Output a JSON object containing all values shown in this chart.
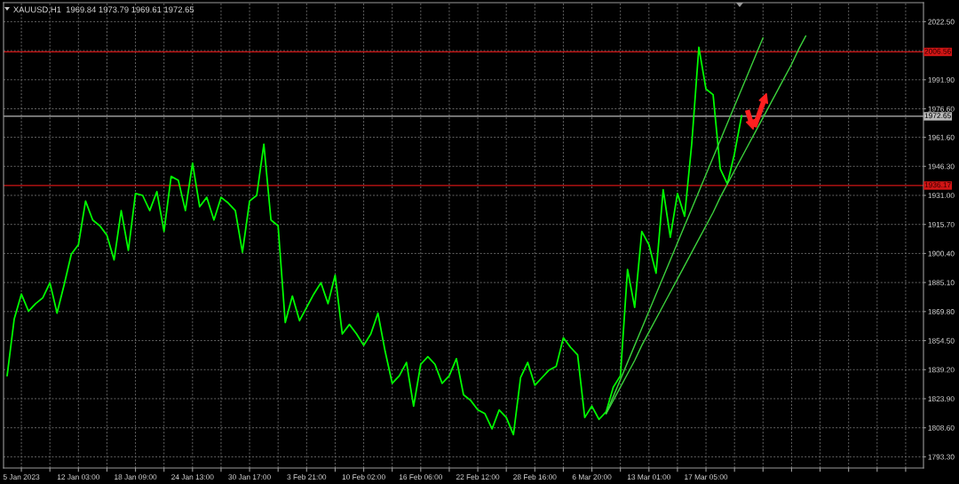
{
  "chart_data": {
    "type": "line",
    "title": "XAUUSD,H1  1969.84 1973.79 1969.61 1972.65",
    "categories": [
      null,
      null,
      "5 Jan 2023",
      null,
      null,
      null,
      null,
      null,
      null,
      null,
      "12 Jan 03:00",
      null,
      null,
      null,
      null,
      null,
      null,
      null,
      "18 Jan 09:00",
      null,
      null,
      null,
      null,
      null,
      null,
      null,
      "24 Jan 13:00",
      null,
      null,
      null,
      null,
      null,
      null,
      null,
      "30 Jan 17:00",
      null,
      null,
      null,
      null,
      null,
      null,
      null,
      "3 Feb 21:00",
      null,
      null,
      null,
      null,
      null,
      null,
      null,
      "10 Feb 02:00",
      null,
      null,
      null,
      null,
      null,
      null,
      null,
      "16 Feb 06:00",
      null,
      null,
      null,
      null,
      null,
      null,
      null,
      "22 Feb 12:00",
      null,
      null,
      null,
      null,
      null,
      null,
      null,
      "28 Feb 16:00",
      null,
      null,
      null,
      null,
      null,
      null,
      null,
      "6 Mar 20:00",
      null,
      null,
      null,
      null,
      null,
      null,
      null,
      "13 Mar 01:00",
      null,
      null,
      null,
      null,
      null,
      null,
      null,
      "17 Mar 05:00",
      null,
      null,
      null,
      null,
      null,
      null,
      null,
      null,
      null,
      null,
      null,
      null,
      null,
      null,
      null,
      null,
      null,
      null,
      null,
      null,
      null,
      null,
      null,
      null,
      null,
      null,
      null,
      null,
      null,
      null
    ],
    "series": [
      {
        "color": "#00ff00",
        "values": [
          1836,
          1866,
          1879,
          1870,
          1874,
          1877,
          1885,
          1869,
          1884,
          1900,
          1905,
          1928,
          1918,
          1915,
          1910,
          1897,
          1923,
          1902,
          1932,
          1931,
          1923,
          1933,
          1912,
          1941,
          1939,
          1923,
          1948,
          1925,
          1930,
          1918,
          1930,
          1927,
          1923,
          1901,
          1928,
          1931,
          1958,
          1918,
          1915,
          1864,
          1878,
          1865,
          1872,
          1879,
          1885,
          1874,
          1889,
          1858,
          1863,
          1858,
          1852,
          1858,
          1869,
          1849,
          1832,
          1836,
          1843,
          1820,
          1842,
          1846,
          1842,
          1832,
          1836,
          1845,
          1826,
          1823,
          1818,
          1816,
          1808,
          1818,
          1814,
          1805,
          1835,
          1843,
          1831,
          1835,
          1839,
          1841,
          1856,
          1851,
          1847,
          1814,
          1820,
          1813,
          1817,
          1830,
          1836,
          1892,
          1872,
          1912,
          1905,
          1890,
          1934,
          1909,
          1932,
          1920,
          1958,
          2009,
          1987,
          1984,
          1945,
          1937,
          1953,
          1973,
          null,
          null,
          null,
          null,
          null,
          null,
          null,
          null,
          null,
          null,
          null,
          null,
          null,
          null,
          null,
          null,
          null,
          null,
          null,
          null,
          null,
          null,
          null,
          null,
          null
        ]
      },
      {
        "type": "line",
        "color": "#3cd23c",
        "values": [
          null,
          null,
          null,
          null,
          null,
          null,
          null,
          null,
          null,
          null,
          null,
          null,
          null,
          null,
          null,
          null,
          null,
          null,
          null,
          null,
          null,
          null,
          null,
          null,
          null,
          null,
          null,
          null,
          null,
          null,
          null,
          null,
          null,
          null,
          null,
          null,
          null,
          null,
          null,
          null,
          null,
          null,
          null,
          null,
          null,
          null,
          null,
          null,
          null,
          null,
          null,
          null,
          null,
          null,
          null,
          null,
          null,
          null,
          null,
          null,
          null,
          null,
          null,
          null,
          null,
          null,
          null,
          null,
          null,
          null,
          null,
          null,
          null,
          null,
          null,
          null,
          null,
          null,
          null,
          null,
          null,
          null,
          null,
          null,
          1816,
          1825,
          1834,
          1843,
          1852,
          1861,
          1870,
          1879,
          1888,
          1897,
          1906,
          1915,
          1924,
          1933,
          1942,
          1951,
          1960,
          1969,
          1978,
          1987,
          1996,
          2005,
          2014,
          null,
          null,
          null,
          null,
          null,
          null,
          null,
          null,
          null,
          null,
          null,
          null,
          null,
          null,
          null,
          null,
          null,
          null,
          null,
          null,
          null,
          null
        ]
      },
      {
        "type": "line",
        "color": "#3cd23c",
        "values": [
          null,
          null,
          null,
          null,
          null,
          null,
          null,
          null,
          null,
          null,
          null,
          null,
          null,
          null,
          null,
          null,
          null,
          null,
          null,
          null,
          null,
          null,
          null,
          null,
          null,
          null,
          null,
          null,
          null,
          null,
          null,
          null,
          null,
          null,
          null,
          null,
          null,
          null,
          null,
          null,
          null,
          null,
          null,
          null,
          null,
          null,
          null,
          null,
          null,
          null,
          null,
          null,
          null,
          null,
          null,
          null,
          null,
          null,
          null,
          null,
          null,
          null,
          null,
          null,
          null,
          null,
          null,
          null,
          null,
          null,
          null,
          null,
          null,
          null,
          null,
          null,
          null,
          null,
          null,
          null,
          null,
          null,
          null,
          null,
          1816,
          1823,
          1830,
          1837,
          1844,
          1852,
          1859,
          1866,
          1873,
          1880,
          1887,
          1894,
          1901,
          1908,
          1915,
          1922,
          1930,
          1937,
          1944,
          1951,
          1958,
          1965,
          1972,
          1979,
          1986,
          1993,
          2000,
          2008,
          2015,
          null,
          null,
          null,
          null,
          null,
          null,
          null,
          null,
          null,
          null,
          null,
          null,
          null,
          null,
          null,
          null
        ]
      }
    ],
    "ylim": [
      1787.4,
      2032.5
    ],
    "yticks": [
      {
        "value": 1793.3,
        "label": "1793.30"
      },
      {
        "value": 1808.6,
        "label": "1808.60"
      },
      {
        "value": 1823.9,
        "label": "1823.90"
      },
      {
        "value": 1839.2,
        "label": "1839.20"
      },
      {
        "value": 1854.5,
        "label": "1854.50"
      },
      {
        "value": 1869.8,
        "label": "1869.80"
      },
      {
        "value": 1885.1,
        "label": "1885.10"
      },
      {
        "value": 1900.4,
        "label": "1900.40"
      },
      {
        "value": 1915.7,
        "label": "1915.70"
      },
      {
        "value": 1931.0,
        "label": "1931.00"
      },
      {
        "value": 1946.3,
        "label": "1946.30"
      },
      {
        "value": 1961.6,
        "label": "1961.60"
      },
      {
        "value": 1976.6,
        "label": "1976.60"
      },
      {
        "value": 1991.9,
        "label": "1991.90"
      },
      {
        "value": 2007.2,
        "label": null
      },
      {
        "value": 2022.5,
        "label": "2022.50"
      }
    ],
    "grid": true,
    "ref_lines": [
      {
        "axis": "y",
        "value": 2006.56,
        "label": "2006.56",
        "color": "#d01515"
      },
      {
        "axis": "y",
        "value": 1972.65,
        "label": "1972.65",
        "color": "#b9b9b9"
      },
      {
        "axis": "y",
        "value": 1936.17,
        "label": "1936.17",
        "color": "#d01515"
      }
    ]
  }
}
